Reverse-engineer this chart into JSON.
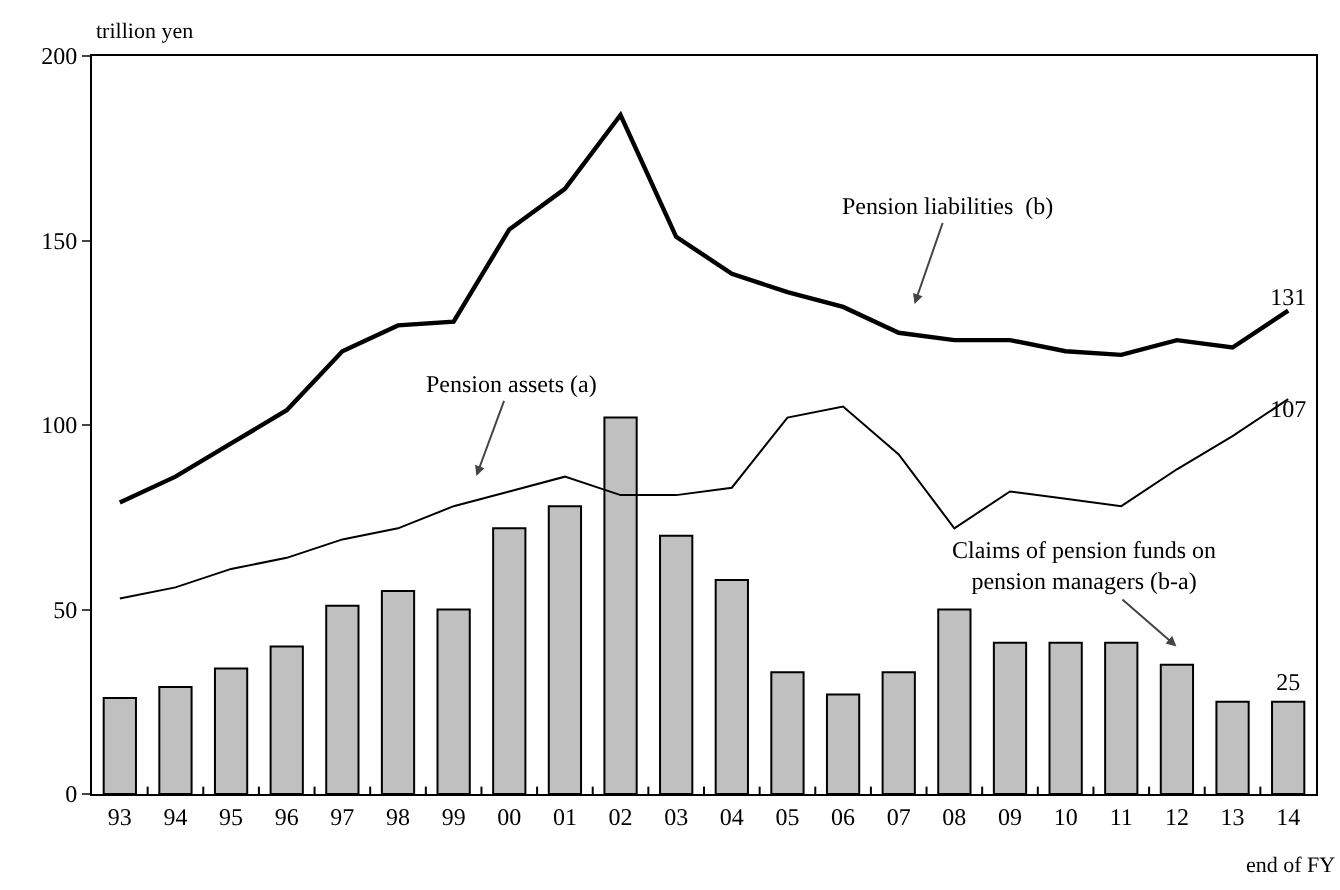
{
  "chart_data": {
    "type": "bar",
    "ylabel": "trillion yen",
    "xlabel": "end of FY",
    "categories": [
      "93",
      "94",
      "95",
      "96",
      "97",
      "98",
      "99",
      "00",
      "01",
      "02",
      "03",
      "04",
      "05",
      "06",
      "07",
      "08",
      "09",
      "10",
      "11",
      "12",
      "13",
      "14"
    ],
    "series": [
      {
        "color": "#c0c0c0",
        "values": [
          26,
          29,
          34,
          40,
          51,
          55,
          50,
          72,
          78,
          102,
          70,
          58,
          33,
          27,
          33,
          50,
          41,
          41,
          41,
          35,
          25,
          25
        ],
        "value_labels": [
          null,
          null,
          null,
          null,
          null,
          null,
          null,
          null,
          null,
          null,
          null,
          null,
          null,
          null,
          null,
          null,
          null,
          null,
          null,
          null,
          null,
          "25"
        ]
      },
      {
        "type": "line",
        "color": "#000000",
        "values": [
          79,
          86,
          95,
          104,
          120,
          127,
          128,
          153,
          164,
          184,
          151,
          141,
          136,
          132,
          125,
          123,
          123,
          120,
          119,
          123,
          121,
          131
        ],
        "value_labels": [
          null,
          null,
          null,
          null,
          null,
          null,
          null,
          null,
          null,
          null,
          null,
          null,
          null,
          null,
          null,
          null,
          null,
          null,
          null,
          null,
          null,
          "131"
        ]
      },
      {
        "type": "line",
        "color": "#000000",
        "values": [
          53,
          56,
          61,
          64,
          69,
          72,
          78,
          82,
          86,
          81,
          81,
          83,
          102,
          105,
          92,
          72,
          82,
          80,
          78,
          88,
          97,
          107
        ],
        "value_labels": [
          null,
          null,
          null,
          null,
          null,
          null,
          null,
          null,
          null,
          null,
          null,
          null,
          null,
          null,
          null,
          null,
          null,
          null,
          null,
          null,
          null,
          "107"
        ]
      }
    ],
    "annotations": [
      "Pension liabilities  (b)",
      "Pension assets (a)",
      "Claims of pension funds on pension managers (b-a)"
    ],
    "ylim": [
      0,
      200
    ],
    "yticks": [
      0,
      50,
      100,
      150,
      200
    ],
    "grid": false,
    "legend": false,
    "marker": "none",
    "line_style": "solid"
  }
}
